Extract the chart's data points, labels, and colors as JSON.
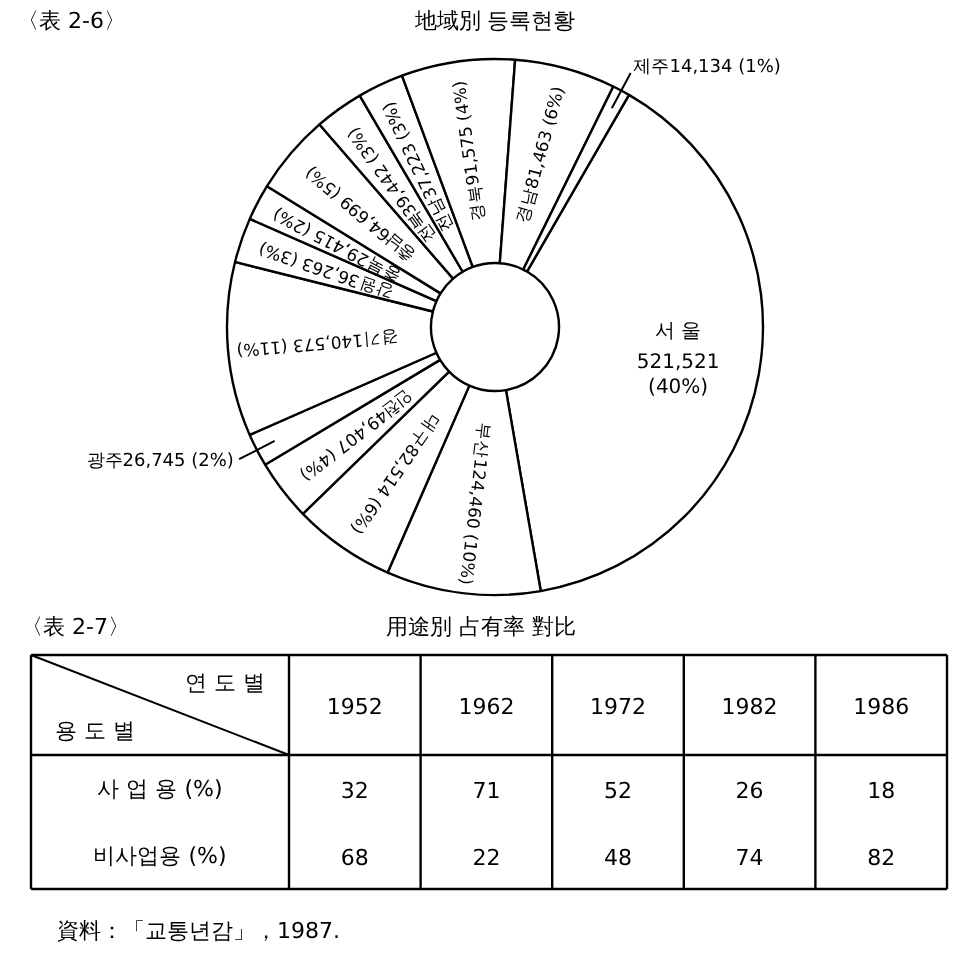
{
  "chart_data": [
    {
      "type": "donut",
      "title": "地域別 등록현황",
      "annotations": [
        "〈表 2-6〉"
      ],
      "categories": [
        "서 울",
        "부산",
        "대구",
        "인천",
        "광주",
        "경기",
        "강원",
        "충북",
        "충남",
        "전북",
        "전남",
        "경북",
        "경남",
        "제주"
      ],
      "values": [
        521521,
        124460,
        82514,
        49407,
        26745,
        140573,
        36263,
        29415,
        64699,
        39442,
        37223,
        91575,
        81463,
        14134
      ],
      "value_labels": [
        "521,521 (40%)",
        "124,460 (10%)",
        "82,514 (6%)",
        "49,407 (4%)",
        "26,745 (2%)",
        "140,573 (11%)",
        "36,263 (3%)",
        "29,415 (2%)",
        "64,699 (5%)",
        "39,442 (3%)",
        "37,223 (3%)",
        "91,575 (4%)",
        "81,463 (6%)",
        "14,134 (1%)"
      ],
      "colors": [
        "#ffffff",
        "#ffffff",
        "#ffffff",
        "#ffffff",
        "#ffffff",
        "#ffffff",
        "#ffffff",
        "#ffffff",
        "#ffffff",
        "#ffffff",
        "#ffffff",
        "#ffffff",
        "#ffffff",
        "#ffffff"
      ]
    },
    {
      "type": "heatmap",
      "title": "用途別 占有率 對比",
      "annotations": [
        "〈表 2-7〉",
        "資料：「교통년감」，1987."
      ],
      "xlabel": "연 도 별",
      "ylabel": "용 도 별",
      "categories": [
        "1952",
        "1962",
        "1972",
        "1982",
        "1986"
      ],
      "y_categories": [
        "사 업 용 (%)",
        "비사업용 (%)"
      ],
      "cells": [
        [
          32,
          71,
          52,
          26,
          18
        ],
        [
          68,
          22,
          48,
          74,
          82
        ]
      ],
      "data_labels": true
    }
  ]
}
